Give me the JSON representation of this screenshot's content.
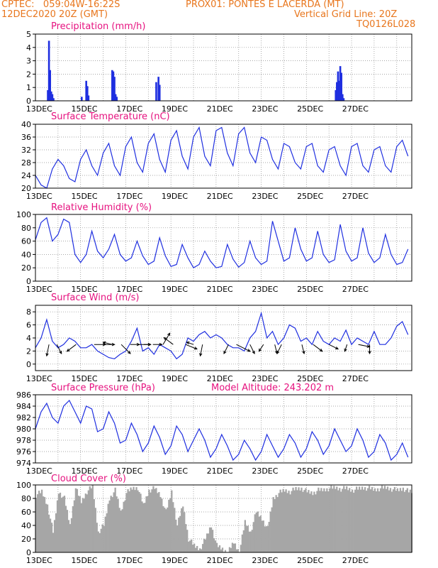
{
  "header": {
    "line1_left": "CPTEC:   059:04W-16:22S",
    "line1_right": "PROX01: PONTES E LACERDA (MT)",
    "line2_left": "12DEC2020 20Z (GMT)",
    "line2_right": "Vertical Grid Line: 20Z",
    "line3_right": "TQ0126L028"
  },
  "colors": {
    "header": "#e8761d",
    "panel_title": "#e6127f",
    "series": "#1f2fe0",
    "cloud": "#a6a6a6",
    "grid": "#8a8a8a"
  },
  "x_tick_labels": [
    "13DEC",
    "15DEC",
    "17DEC",
    "19DEC",
    "21DEC",
    "23DEC",
    "25DEC",
    "27DEC"
  ],
  "chart_data": [
    {
      "id": "precip",
      "type": "bar",
      "title": "Precipitation (mm/h)",
      "ylim": [
        0,
        5
      ],
      "yticks": [
        0,
        1,
        2,
        3,
        4,
        5
      ],
      "x_unit": "days since 12DEC2020 20Z",
      "x": [
        0.55,
        0.6,
        0.65,
        0.7,
        0.75,
        0.8,
        2.05,
        2.25,
        2.3,
        2.35,
        3.4,
        3.45,
        3.5,
        3.55,
        3.6,
        5.35,
        5.45,
        5.5,
        13.3,
        13.35,
        13.4,
        13.45,
        13.5,
        13.55,
        13.6,
        13.65
      ],
      "values": [
        0.8,
        4.5,
        2.3,
        0.7,
        0.5,
        0.2,
        0.3,
        1.5,
        1.1,
        0.4,
        2.3,
        2.2,
        1.8,
        0.5,
        0.3,
        1.4,
        1.8,
        1.2,
        0.8,
        1.4,
        2.2,
        1.5,
        2.6,
        2.1,
        0.5,
        0.2
      ]
    },
    {
      "id": "temp",
      "type": "line",
      "title": "Surface Temperature (nC)",
      "ylim": [
        20,
        40
      ],
      "yticks": [
        20,
        24,
        28,
        32,
        36,
        40
      ],
      "x_step_days": 0.25,
      "values": [
        24,
        21,
        20,
        26,
        29,
        27,
        23,
        22,
        29,
        32,
        27,
        24,
        31,
        34,
        27,
        24,
        33,
        36,
        28,
        25,
        34,
        37,
        29,
        25,
        35,
        38,
        30,
        26,
        36,
        39,
        30,
        27,
        38,
        39,
        31,
        27,
        37,
        39,
        31,
        28,
        36,
        35,
        29,
        26,
        34,
        33,
        28,
        26,
        33,
        34,
        27,
        25,
        32,
        33,
        27,
        24,
        33,
        34,
        27,
        25,
        32,
        33,
        27,
        25,
        33,
        35,
        30
      ]
    },
    {
      "id": "rh",
      "type": "line",
      "title": "Relative Humidity (%)",
      "ylim": [
        0,
        100
      ],
      "yticks": [
        0,
        20,
        40,
        60,
        80,
        100
      ],
      "x_step_days": 0.25,
      "values": [
        62,
        88,
        95,
        60,
        70,
        93,
        88,
        40,
        28,
        40,
        75,
        45,
        35,
        48,
        70,
        40,
        30,
        35,
        60,
        38,
        25,
        30,
        65,
        38,
        22,
        25,
        55,
        35,
        20,
        25,
        45,
        30,
        20,
        22,
        55,
        33,
        21,
        28,
        60,
        35,
        25,
        30,
        90,
        60,
        30,
        35,
        80,
        48,
        30,
        35,
        75,
        40,
        28,
        32,
        85,
        45,
        30,
        35,
        80,
        42,
        28,
        35,
        70,
        40,
        25,
        28,
        48
      ]
    },
    {
      "id": "wind",
      "type": "line",
      "title": "Surface Wind (m/s)",
      "ylim": [
        0,
        8
      ],
      "yticks": [
        0,
        2,
        4,
        6,
        8
      ],
      "x_step_days": 0.25,
      "values": [
        2.5,
        4,
        6.8,
        3.5,
        2.5,
        3,
        4,
        3.5,
        2.5,
        2.5,
        3,
        2,
        1.5,
        1,
        0.8,
        1.5,
        2,
        3.5,
        5.5,
        2,
        2.5,
        1.5,
        3,
        2.5,
        2,
        0.8,
        1.5,
        4,
        3.5,
        4.5,
        5,
        4,
        4.5,
        4,
        3,
        2.5,
        2.5,
        2,
        4,
        5,
        7.8,
        4,
        5,
        3,
        4,
        6,
        5.5,
        3.5,
        4,
        3,
        5,
        3.5,
        3,
        4,
        3.5,
        5.2,
        3,
        4,
        3.5,
        3,
        5,
        3,
        3,
        4,
        5.8,
        6.5,
        4.5
      ],
      "vectors": [
        {
          "x": 0.6,
          "u": -1,
          "v": -5
        },
        {
          "x": 0.95,
          "u": 2,
          "v": -4
        },
        {
          "x": 1.8,
          "u": -4,
          "v": -3
        },
        {
          "x": 2.6,
          "u": 5,
          "v": 0
        },
        {
          "x": 3.0,
          "u": 5,
          "v": 0
        },
        {
          "x": 3.4,
          "u": -4,
          "v": 1
        },
        {
          "x": 3.8,
          "u": 4,
          "v": -4
        },
        {
          "x": 4.2,
          "u": 4,
          "v": 0
        },
        {
          "x": 4.6,
          "u": 5,
          "v": 0
        },
        {
          "x": 4.8,
          "u": 3,
          "v": 0
        },
        {
          "x": 5.2,
          "u": 4,
          "v": 0
        },
        {
          "x": 5.65,
          "u": 3,
          "v": 5
        },
        {
          "x": 6.1,
          "u": -4,
          "v": 3
        },
        {
          "x": 6.65,
          "u": 5,
          "v": -2
        },
        {
          "x": 7.0,
          "u": -3,
          "v": 1
        },
        {
          "x": 7.4,
          "u": -1,
          "v": -5
        },
        {
          "x": 8.55,
          "u": -2,
          "v": -4
        },
        {
          "x": 8.9,
          "u": 6,
          "v": -3
        },
        {
          "x": 9.5,
          "u": 2,
          "v": -4
        },
        {
          "x": 10.1,
          "u": -2,
          "v": -3
        },
        {
          "x": 10.6,
          "u": 1,
          "v": -4
        },
        {
          "x": 10.9,
          "u": -2,
          "v": -4
        },
        {
          "x": 11.8,
          "u": 1,
          "v": -4
        },
        {
          "x": 12.3,
          "u": 4,
          "v": -3
        },
        {
          "x": 13.0,
          "u": 4,
          "v": -2
        },
        {
          "x": 13.8,
          "u": -1,
          "v": -3
        },
        {
          "x": 14.3,
          "u": 5,
          "v": -1
        },
        {
          "x": 14.8,
          "u": 0,
          "v": -4
        }
      ]
    },
    {
      "id": "pressure",
      "type": "line",
      "title": "Surface Pressure (hPa)",
      "extra_label": "Model Altitude: 243.202 m",
      "ylim": [
        974,
        986
      ],
      "yticks": [
        974,
        976,
        978,
        980,
        982,
        984,
        986
      ],
      "x_step_days": 0.25,
      "values": [
        980,
        983,
        984.5,
        982,
        981,
        984,
        985,
        983,
        981,
        984,
        983.5,
        979.5,
        980,
        983,
        981,
        977.5,
        978,
        981,
        979,
        976,
        977.5,
        980.5,
        978.5,
        975.5,
        977,
        980.5,
        979,
        976,
        978,
        980,
        978,
        975,
        976.5,
        979,
        977,
        974.5,
        975.5,
        978,
        976.5,
        974.5,
        976,
        979,
        977,
        975,
        976.5,
        979,
        977.5,
        975,
        976.5,
        979.5,
        978,
        975.5,
        977,
        980,
        978,
        976,
        977,
        980,
        978,
        975,
        976,
        979,
        977.5,
        974.5,
        975.5,
        977.5,
        975
      ]
    },
    {
      "id": "cloud",
      "type": "area",
      "title": "Cloud Cover (%)",
      "ylim": [
        0,
        100
      ],
      "yticks": [
        0,
        20,
        40,
        60,
        80,
        100
      ],
      "x_step_days": 0.25,
      "values": [
        85,
        90,
        70,
        30,
        90,
        80,
        40,
        95,
        75,
        90,
        98,
        30,
        40,
        80,
        92,
        60,
        88,
        95,
        96,
        70,
        92,
        95,
        85,
        60,
        90,
        40,
        70,
        20,
        10,
        5,
        20,
        40,
        10,
        5,
        0,
        15,
        0,
        45,
        30,
        60,
        50,
        35,
        80,
        88,
        92,
        90,
        94,
        95,
        90,
        88,
        92,
        93,
        95,
        96,
        94,
        95,
        92,
        94,
        96,
        95,
        93,
        95,
        96,
        94,
        92,
        95,
        90
      ]
    }
  ]
}
